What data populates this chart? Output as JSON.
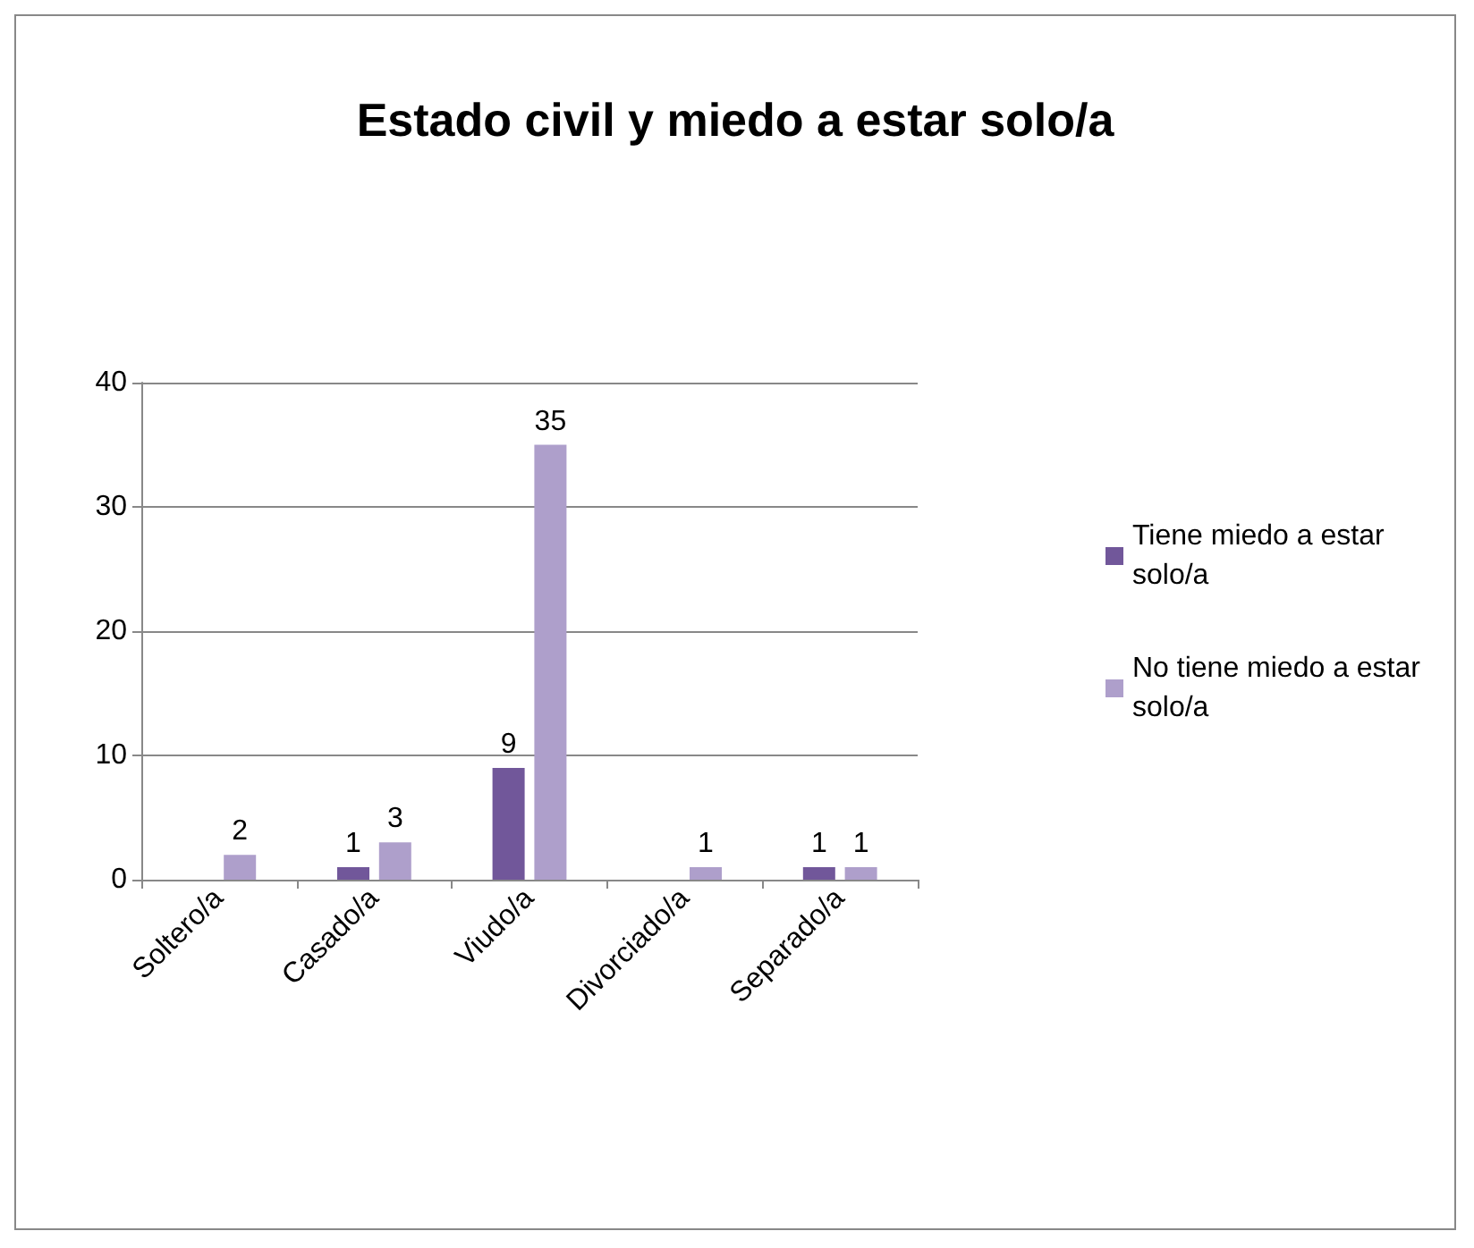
{
  "chart_data": {
    "type": "bar",
    "title": "Estado civil y miedo a estar solo/a",
    "categories": [
      "Soltero/a",
      "Casado/a",
      "Viudo/a",
      "Divorciado/a",
      "Separado/a"
    ],
    "series": [
      {
        "name": "Tiene miedo a estar solo/a",
        "color": "#71579a",
        "values": [
          0,
          1,
          9,
          0,
          1
        ],
        "value_labels": [
          null,
          "1",
          "9",
          null,
          "1"
        ]
      },
      {
        "name": "No tiene miedo a estar solo/a",
        "color": "#ae9fcb",
        "values": [
          2,
          3,
          35,
          1,
          1
        ],
        "value_labels": [
          "2",
          "3",
          "35",
          "1",
          "1"
        ]
      }
    ],
    "ylim": [
      0,
      40
    ],
    "yticks": [
      0,
      10,
      20,
      30,
      40
    ],
    "grid": "y",
    "legend": "right"
  }
}
